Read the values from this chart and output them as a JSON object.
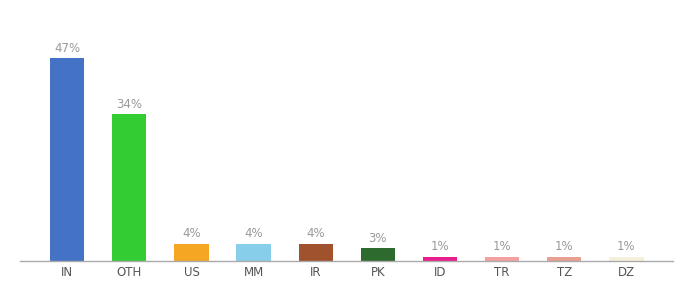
{
  "categories": [
    "IN",
    "OTH",
    "US",
    "MM",
    "IR",
    "PK",
    "ID",
    "TR",
    "TZ",
    "DZ"
  ],
  "values": [
    47,
    34,
    4,
    4,
    4,
    3,
    1,
    1,
    1,
    1
  ],
  "bar_colors": [
    "#4472C4",
    "#33CC33",
    "#F5A623",
    "#87CEEB",
    "#A0522D",
    "#2D6A2D",
    "#E91E8C",
    "#F4A0A0",
    "#E8A090",
    "#F5F0DC"
  ],
  "ylim": [
    0,
    55
  ],
  "label_fontsize": 8.5,
  "tick_fontsize": 8.5,
  "label_color": "#999999",
  "tick_color": "#555555",
  "background_color": "#ffffff",
  "bar_width": 0.55
}
